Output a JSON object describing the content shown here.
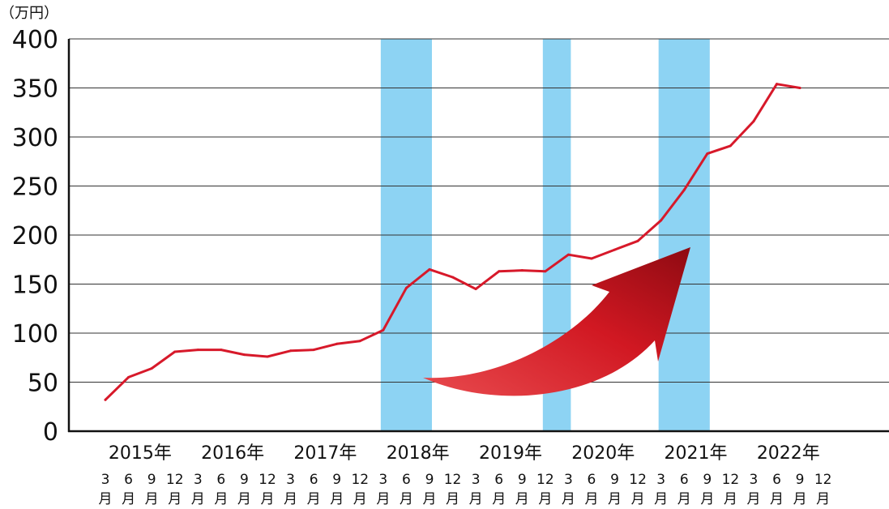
{
  "chart_data": {
    "type": "line",
    "title": "",
    "ylabel": "（万円）",
    "xlabel": "",
    "ylim": [
      0,
      400
    ],
    "yticks": [
      "0",
      "50",
      "100",
      "150",
      "200",
      "250",
      "300",
      "350",
      "400"
    ],
    "grid": true,
    "years": [
      "2015年",
      "2016年",
      "2017年",
      "2018年",
      "2019年",
      "2020年",
      "2021年",
      "2022年"
    ],
    "months": [
      "3",
      "6",
      "9",
      "12"
    ],
    "month_suffix": "月",
    "x": [
      "2015-03",
      "2015-06",
      "2015-09",
      "2015-12",
      "2016-03",
      "2016-06",
      "2016-09",
      "2016-12",
      "2017-03",
      "2017-06",
      "2017-09",
      "2017-12",
      "2018-03",
      "2018-06",
      "2018-09",
      "2018-12",
      "2019-03",
      "2019-06",
      "2019-09",
      "2019-12",
      "2020-03",
      "2020-06",
      "2020-09",
      "2020-12",
      "2021-03",
      "2021-06",
      "2021-09",
      "2021-12",
      "2022-03",
      "2022-06",
      "2022-09"
    ],
    "series": [
      {
        "color": "#d7192a",
        "values": [
          32,
          55,
          64,
          81,
          83,
          83,
          78,
          76,
          82,
          83,
          89,
          92,
          103,
          146,
          165,
          157,
          145,
          163,
          164,
          163,
          180,
          176,
          185,
          194,
          215,
          246,
          283,
          291,
          316,
          354,
          350
        ]
      }
    ],
    "highlight_bands": [
      {
        "from": "2018-03",
        "to": "2018-09",
        "color": "#8dd3f3"
      },
      {
        "from": "2019-12",
        "to": "2020-03",
        "color": "#8dd3f3"
      },
      {
        "from": "2021-03",
        "to": "2021-09",
        "color": "#8dd3f3"
      }
    ],
    "arrow": {
      "direction": "up-right",
      "color": "#c8141e"
    }
  }
}
